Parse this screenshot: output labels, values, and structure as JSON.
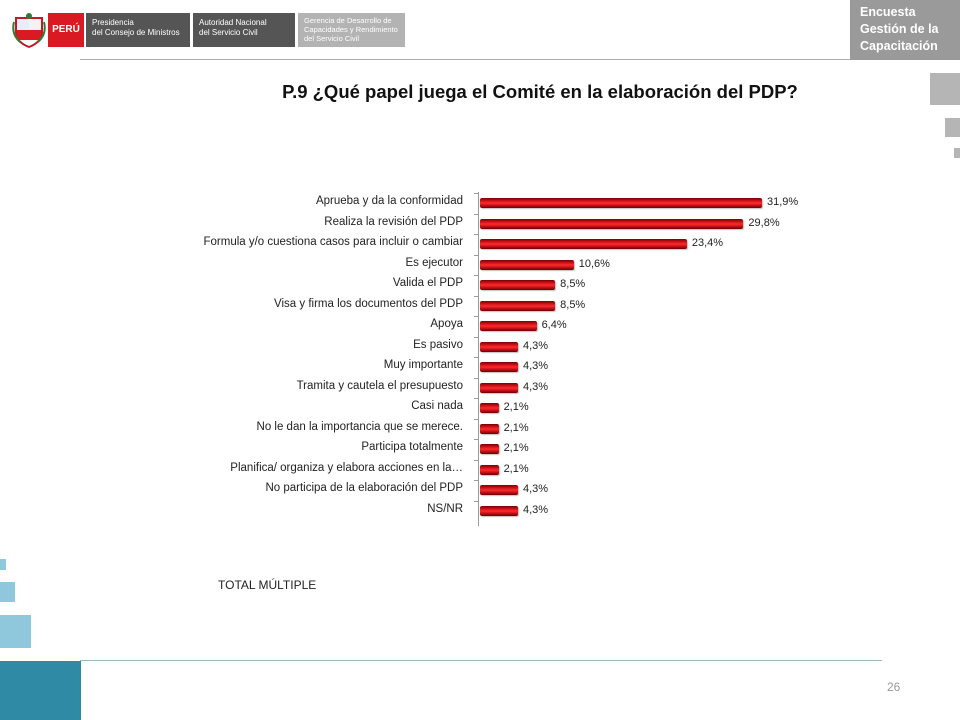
{
  "header": {
    "logo_peru": "PERÚ",
    "logo_pcm_line1": "Presidencia",
    "logo_pcm_line2": "del Consejo de Ministros",
    "logo_servir_line1": "Autoridad Nacional",
    "logo_servir_line2": "del Servicio Civil",
    "logo_gerencia_line1": "Gerencia de Desarrollo de",
    "logo_gerencia_line2": "Capacidades y Rendimiento",
    "logo_gerencia_line3": "del Servicio Civil",
    "corner_line1": "Encuesta",
    "corner_line2": "Gestión de la",
    "corner_line3": "Capacitación"
  },
  "chart_data": {
    "type": "bar",
    "orientation": "horizontal",
    "title": "P.9 ¿Qué papel juega el Comité en la elaboración del PDP?",
    "categories": [
      "Aprueba y da la conformidad",
      "Realiza la revisión del PDP",
      "Formula y/o cuestiona casos para incluir o cambiar",
      "Es ejecutor",
      "Valida el PDP",
      "Visa y firma los documentos del PDP",
      "Apoya",
      "Es pasivo",
      "Muy importante",
      "Tramita y cautela el presupuesto",
      "Casi nada",
      "No le dan la importancia que se merece.",
      "Participa totalmente",
      "Planifica/ organiza y elabora acciones en la…",
      "No participa de la elaboración del PDP",
      "NS/NR"
    ],
    "values": [
      31.9,
      29.8,
      23.4,
      10.6,
      8.5,
      8.5,
      6.4,
      4.3,
      4.3,
      4.3,
      2.1,
      2.1,
      2.1,
      2.1,
      4.3,
      4.3
    ],
    "value_labels": [
      "31,9%",
      "29,8%",
      "23,4%",
      "10,6%",
      "8,5%",
      "8,5%",
      "6,4%",
      "4,3%",
      "4,3%",
      "4,3%",
      "2,1%",
      "2,1%",
      "2,1%",
      "2,1%",
      "4,3%",
      "4,3%"
    ],
    "bar_color": "#d0141a",
    "xlim": [
      0,
      35
    ],
    "grid": false,
    "legend": "none"
  },
  "footer": {
    "total_label": "TOTAL MÚLTIPLE",
    "page_number": "26"
  }
}
